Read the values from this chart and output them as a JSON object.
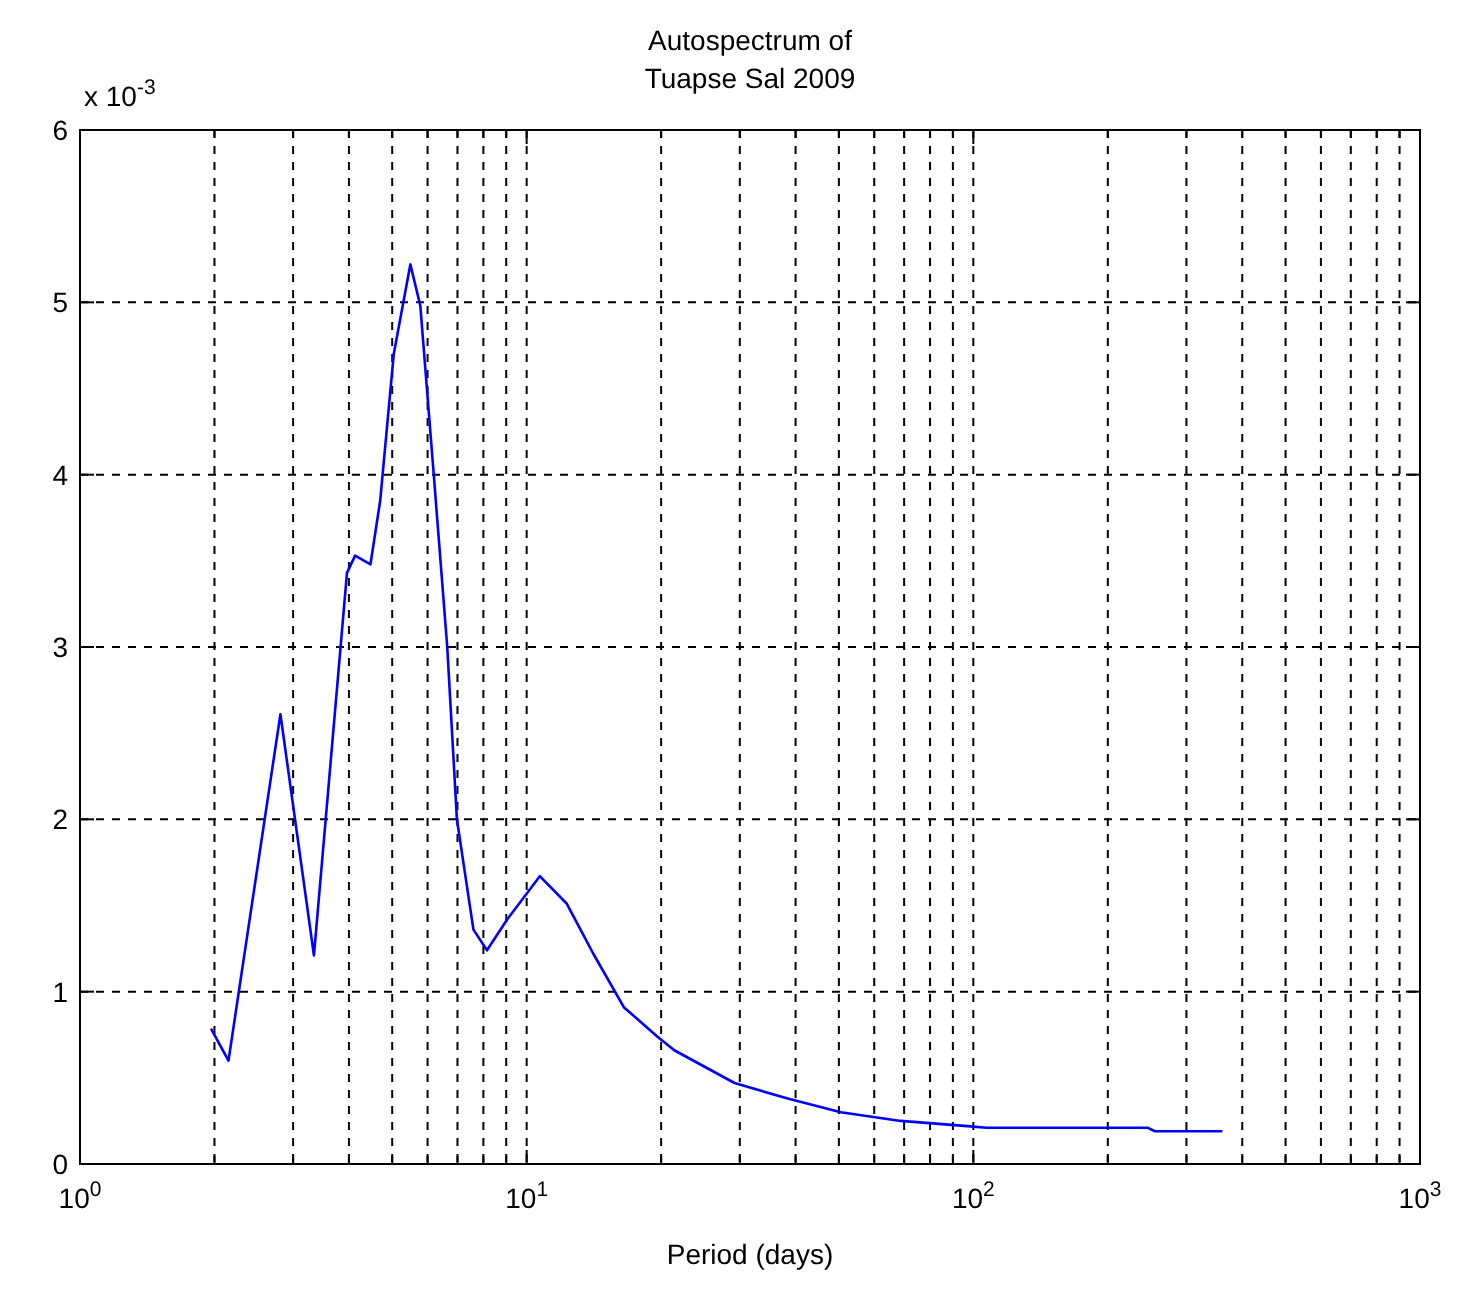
{
  "chart_data": {
    "type": "line",
    "title": "Autospectrum of\nTuapse Sal 2009",
    "xlabel": "Period (days)",
    "log": "x",
    "grid": true,
    "line_style": "solid",
    "marker": "none",
    "annotations": [
      "x 10$^{-3}$"
    ],
    "xlim": [
      1,
      1000
    ],
    "ylim": [
      0,
      6
    ],
    "xticks": [
      {
        "value": 1,
        "label": "10$^{0}$"
      },
      {
        "value": 2,
        "label": null
      },
      {
        "value": 3,
        "label": null
      },
      {
        "value": 4,
        "label": null
      },
      {
        "value": 5,
        "label": null
      },
      {
        "value": 6,
        "label": null
      },
      {
        "value": 7,
        "label": null
      },
      {
        "value": 8,
        "label": null
      },
      {
        "value": 9,
        "label": null
      },
      {
        "value": 10,
        "label": "10$^{1}$"
      },
      {
        "value": 20,
        "label": null
      },
      {
        "value": 30,
        "label": null
      },
      {
        "value": 40,
        "label": null
      },
      {
        "value": 50,
        "label": null
      },
      {
        "value": 60,
        "label": null
      },
      {
        "value": 70,
        "label": null
      },
      {
        "value": 80,
        "label": null
      },
      {
        "value": 90,
        "label": null
      },
      {
        "value": 100,
        "label": "10$^{2}$"
      },
      {
        "value": 200,
        "label": null
      },
      {
        "value": 300,
        "label": null
      },
      {
        "value": 400,
        "label": null
      },
      {
        "value": 500,
        "label": null
      },
      {
        "value": 600,
        "label": null
      },
      {
        "value": 700,
        "label": null
      },
      {
        "value": 800,
        "label": null
      },
      {
        "value": 900,
        "label": null
      },
      {
        "value": 1000,
        "label": "10$^{3}$"
      }
    ],
    "yticks": [
      0,
      1,
      2,
      3,
      4,
      5,
      6
    ],
    "series": [
      {
        "color": "#0000ff",
        "x": [
          1.97,
          2.15,
          2.81,
          3.34,
          3.96,
          4.13,
          4.47,
          4.7,
          5.04,
          5.49,
          5.78,
          6.19,
          6.64,
          6.98,
          7.6,
          8.15,
          9.05,
          10.7,
          12.3,
          13.2,
          14.1,
          16.5,
          19.6,
          21.4,
          29.2,
          38.4,
          50.5,
          68.8,
          97,
          107,
          246,
          255,
          359
        ],
        "values": [
          0.78,
          0.6,
          2.61,
          1.21,
          3.43,
          3.53,
          3.48,
          3.85,
          4.7,
          5.22,
          4.98,
          4.01,
          3.0,
          2.0,
          1.36,
          1.24,
          1.42,
          1.67,
          1.51,
          1.36,
          1.22,
          0.91,
          0.74,
          0.66,
          0.47,
          0.38,
          0.3,
          0.25,
          0.22,
          0.21,
          0.21,
          0.19,
          0.19
        ]
      }
    ]
  }
}
